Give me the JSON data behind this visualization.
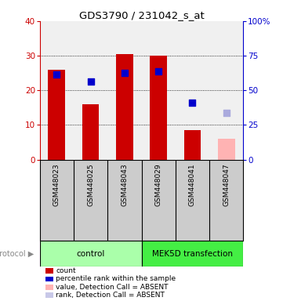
{
  "title": "GDS3790 / 231042_s_at",
  "samples": [
    "GSM448023",
    "GSM448025",
    "GSM448043",
    "GSM448029",
    "GSM448041",
    "GSM448047"
  ],
  "bar_heights": [
    26,
    16,
    30.5,
    30,
    8.5,
    6
  ],
  "bar_colors": [
    "#cc0000",
    "#cc0000",
    "#cc0000",
    "#cc0000",
    "#cc0000",
    "#ffb3b3"
  ],
  "dot_values": [
    24.5,
    22.5,
    25,
    25.5,
    16.5,
    13.5
  ],
  "dot_colors": [
    "#0000cc",
    "#0000cc",
    "#0000cc",
    "#0000cc",
    "#0000cc",
    "#aaaadd"
  ],
  "groups": [
    {
      "label": "control",
      "color": "#aaffaa",
      "start": 0,
      "end": 3
    },
    {
      "label": "MEK5D transfection",
      "color": "#44ee44",
      "start": 3,
      "end": 6
    }
  ],
  "ylim_left": [
    0,
    40
  ],
  "ylim_right": [
    0,
    100
  ],
  "yticks_left": [
    0,
    10,
    20,
    30,
    40
  ],
  "ytick_labels_left": [
    "0",
    "10",
    "20",
    "30",
    "40"
  ],
  "yticks_right": [
    0,
    25,
    50,
    75,
    100
  ],
  "ytick_labels_right": [
    "0",
    "25",
    "50",
    "75",
    "100%"
  ],
  "left_axis_color": "#cc0000",
  "right_axis_color": "#0000cc",
  "plot_bg_color": "#f0f0f0",
  "sample_bg_color": "#cccccc",
  "legend_items": [
    {
      "color": "#cc0000",
      "label": "count"
    },
    {
      "color": "#0000cc",
      "label": "percentile rank within the sample"
    },
    {
      "color": "#ffb3b3",
      "label": "value, Detection Call = ABSENT"
    },
    {
      "color": "#c8c8e8",
      "label": "rank, Detection Call = ABSENT"
    }
  ],
  "bar_width": 0.5,
  "gridlines": [
    10,
    20,
    30
  ]
}
